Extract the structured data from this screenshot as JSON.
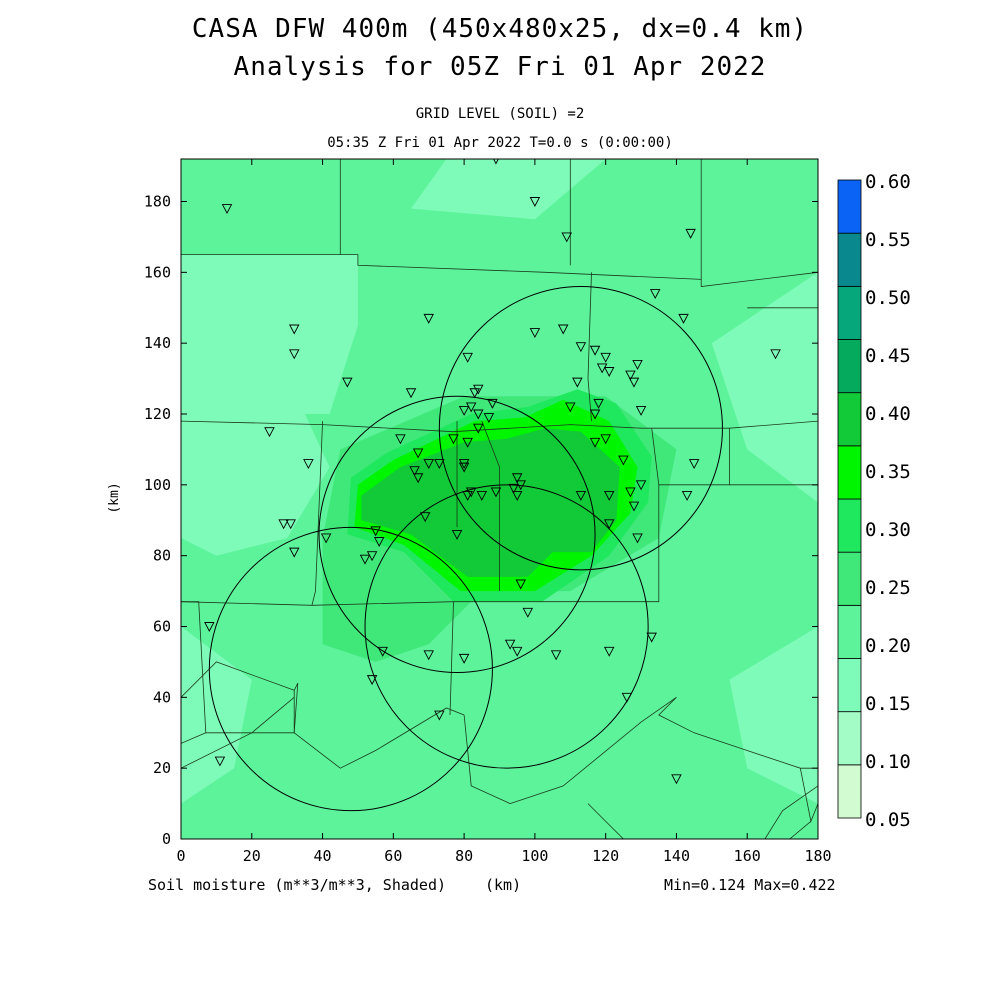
{
  "header": {
    "title_line1": "CASA DFW 400m (450x480x25, dx=0.4 km)",
    "title_line2": "Analysis for 05Z Fri 01 Apr 2022",
    "grid_level": "GRID LEVEL (SOIL) =2",
    "valid_time": "05:35 Z Fri 01 Apr 2022    T=0.0 s (0:00:00)"
  },
  "footer": {
    "field_label": "Soil moisture (m**3/m**3, Shaded)",
    "x_unit": "(km)",
    "minmax": "Min=0.124 Max=0.422"
  },
  "chart_data": {
    "type": "heatmap",
    "title": "CASA DFW 400m (450x480x25, dx=0.4 km)",
    "subtitle": "Analysis for 05Z Fri 01 Apr 2022",
    "xlabel": "(km)",
    "ylabel": "(km)",
    "xlim": [
      0,
      180
    ],
    "ylim": [
      0,
      192
    ],
    "x_ticks": [
      0,
      20,
      40,
      60,
      80,
      100,
      120,
      140,
      160,
      180
    ],
    "y_ticks": [
      0,
      20,
      40,
      60,
      80,
      100,
      120,
      140,
      160,
      180
    ],
    "grid": false,
    "colorbar": {
      "levels": [
        0.05,
        0.1,
        0.15,
        0.2,
        0.25,
        0.3,
        0.35,
        0.4,
        0.45,
        0.5,
        0.55,
        0.6
      ],
      "labels": [
        "0.05",
        "0.10",
        "0.15",
        "0.20",
        "0.25",
        "0.30",
        "0.35",
        "0.40",
        "0.45",
        "0.50",
        "0.55",
        "0.60"
      ],
      "colors": [
        "#d2fbd2",
        "#a3fbc6",
        "#7ffbb9",
        "#5cf39b",
        "#40e87a",
        "#20e85e",
        "#00f500",
        "#12c937",
        "#06aa5d",
        "#07a77c",
        "#09898d",
        "#0a63f5"
      ]
    },
    "background_level": 0.22,
    "regions": [
      {
        "level": 0.17,
        "polygon": [
          [
            0,
            120
          ],
          [
            0,
            165
          ],
          [
            50,
            165
          ],
          [
            50,
            145
          ],
          [
            42,
            120
          ]
        ]
      },
      {
        "level": 0.17,
        "polygon": [
          [
            0,
            120
          ],
          [
            35,
            120
          ],
          [
            42,
            105
          ],
          [
            30,
            85
          ],
          [
            10,
            80
          ],
          [
            0,
            85
          ]
        ]
      },
      {
        "level": 0.17,
        "polygon": [
          [
            100,
            175
          ],
          [
            120,
            192
          ],
          [
            75,
            192
          ],
          [
            65,
            178
          ]
        ]
      },
      {
        "level": 0.17,
        "polygon": [
          [
            180,
            160
          ],
          [
            180,
            95
          ],
          [
            160,
            110
          ],
          [
            150,
            140
          ]
        ]
      },
      {
        "level": 0.17,
        "polygon": [
          [
            180,
            60
          ],
          [
            180,
            10
          ],
          [
            160,
            20
          ],
          [
            155,
            45
          ]
        ]
      },
      {
        "level": 0.17,
        "polygon": [
          [
            0,
            10
          ],
          [
            0,
            60
          ],
          [
            20,
            45
          ],
          [
            15,
            20
          ]
        ]
      },
      {
        "level": 0.27,
        "polygon": [
          [
            40,
            55
          ],
          [
            55,
            50
          ],
          [
            70,
            55
          ],
          [
            85,
            70
          ],
          [
            110,
            70
          ],
          [
            135,
            85
          ],
          [
            140,
            110
          ],
          [
            120,
            125
          ],
          [
            80,
            125
          ],
          [
            45,
            110
          ],
          [
            40,
            85
          ]
        ]
      },
      {
        "level": 0.32,
        "polygon": [
          [
            47,
            86
          ],
          [
            63,
            81
          ],
          [
            77,
            67
          ],
          [
            102,
            67
          ],
          [
            121,
            80
          ],
          [
            132,
            95
          ],
          [
            133,
            108
          ],
          [
            123,
            123
          ],
          [
            112,
            127
          ],
          [
            98,
            122
          ],
          [
            82,
            120
          ],
          [
            58,
            109
          ],
          [
            48,
            102
          ]
        ]
      },
      {
        "level": 0.37,
        "polygon": [
          [
            49,
            88
          ],
          [
            63,
            83
          ],
          [
            79,
            70
          ],
          [
            100,
            70
          ],
          [
            116,
            80
          ],
          [
            127,
            92
          ],
          [
            129,
            105
          ],
          [
            121,
            118
          ],
          [
            108,
            124
          ],
          [
            97,
            119
          ],
          [
            83,
            118
          ],
          [
            60,
            107
          ],
          [
            50,
            100
          ]
        ]
      },
      {
        "level": 0.42,
        "polygon": [
          [
            51,
            90
          ],
          [
            65,
            86
          ],
          [
            81,
            74
          ],
          [
            98,
            74
          ],
          [
            105,
            81
          ],
          [
            116,
            81
          ],
          [
            123,
            90
          ],
          [
            124,
            105
          ],
          [
            113,
            115
          ],
          [
            103,
            116
          ],
          [
            92,
            113
          ],
          [
            80,
            112
          ],
          [
            62,
            105
          ],
          [
            51,
            97
          ]
        ]
      }
    ],
    "radar_circles": [
      {
        "center_x": 113,
        "center_y": 116,
        "radius": 40
      },
      {
        "center_x": 78,
        "center_y": 86,
        "radius": 39
      },
      {
        "center_x": 92,
        "center_y": 60,
        "radius": 40
      },
      {
        "center_x": 48,
        "center_y": 48,
        "radius": 40
      }
    ],
    "county_lines": [
      [
        [
          0,
          165
        ],
        [
          50,
          165
        ],
        [
          50,
          162
        ],
        [
          103,
          160
        ],
        [
          147,
          158
        ],
        [
          147,
          156
        ],
        [
          180,
          160
        ]
      ],
      [
        [
          0,
          118
        ],
        [
          40,
          117
        ],
        [
          77,
          115
        ],
        [
          110,
          117
        ],
        [
          130,
          116
        ],
        [
          155,
          116
        ],
        [
          180,
          118
        ]
      ],
      [
        [
          40,
          118
        ],
        [
          38,
          70
        ],
        [
          37,
          66
        ],
        [
          0,
          67
        ]
      ],
      [
        [
          78,
          118
        ],
        [
          78,
          88
        ]
      ],
      [
        [
          85,
          118
        ],
        [
          90,
          105
        ],
        [
          90,
          70
        ]
      ],
      [
        [
          116,
          160
        ],
        [
          115,
          130
        ],
        [
          116,
          118
        ]
      ],
      [
        [
          133,
          116
        ],
        [
          135,
          100
        ],
        [
          135,
          67
        ],
        [
          100,
          67
        ],
        [
          77,
          67
        ],
        [
          37,
          66
        ]
      ],
      [
        [
          155,
          116
        ],
        [
          155,
          100
        ],
        [
          180,
          100
        ]
      ],
      [
        [
          135,
          100
        ],
        [
          155,
          100
        ]
      ],
      [
        [
          160,
          150
        ],
        [
          180,
          150
        ]
      ],
      [
        [
          147,
          192
        ],
        [
          147,
          158
        ]
      ],
      [
        [
          110,
          192
        ],
        [
          110,
          162
        ]
      ],
      [
        [
          45,
          192
        ],
        [
          45,
          165
        ]
      ],
      [
        [
          0,
          67
        ],
        [
          5,
          67
        ],
        [
          7,
          30
        ],
        [
          32,
          30
        ],
        [
          32,
          42
        ],
        [
          33,
          44
        ]
      ],
      [
        [
          7,
          30
        ],
        [
          0,
          27
        ]
      ],
      [
        [
          33,
          44
        ],
        [
          32,
          30
        ],
        [
          45,
          20
        ],
        [
          55,
          25
        ],
        [
          75,
          37
        ],
        [
          80,
          35
        ]
      ],
      [
        [
          80,
          35
        ],
        [
          82,
          15
        ],
        [
          93,
          10
        ]
      ],
      [
        [
          93,
          10
        ],
        [
          108,
          15
        ],
        [
          130,
          33
        ],
        [
          140,
          40
        ]
      ],
      [
        [
          140,
          40
        ],
        [
          135,
          35
        ],
        [
          145,
          30
        ],
        [
          160,
          25
        ],
        [
          175,
          20
        ],
        [
          178,
          5
        ],
        [
          180,
          10
        ]
      ],
      [
        [
          175,
          20
        ],
        [
          180,
          20
        ]
      ],
      [
        [
          0,
          20
        ],
        [
          20,
          30
        ],
        [
          32,
          40
        ]
      ],
      [
        [
          0,
          40
        ],
        [
          10,
          50
        ],
        [
          32,
          42
        ]
      ],
      [
        [
          77,
          67
        ],
        [
          76,
          35
        ]
      ],
      [
        [
          115,
          10
        ],
        [
          125,
          0
        ]
      ],
      [
        [
          165,
          0
        ],
        [
          170,
          8
        ],
        [
          180,
          15
        ]
      ],
      [
        [
          172,
          0
        ],
        [
          178,
          5
        ]
      ]
    ],
    "stations": [
      [
        13,
        178
      ],
      [
        89,
        192
      ],
      [
        100,
        180
      ],
      [
        109,
        170
      ],
      [
        144,
        171
      ],
      [
        32,
        144
      ],
      [
        32,
        137
      ],
      [
        47,
        129
      ],
      [
        70,
        147
      ],
      [
        65,
        126
      ],
      [
        81,
        136
      ],
      [
        100,
        143
      ],
      [
        108,
        144
      ],
      [
        113,
        139
      ],
      [
        117,
        138
      ],
      [
        120,
        136
      ],
      [
        119,
        133
      ],
      [
        121,
        132
      ],
      [
        127,
        131
      ],
      [
        129,
        134
      ],
      [
        128,
        129
      ],
      [
        112,
        129
      ],
      [
        134,
        154
      ],
      [
        142,
        147
      ],
      [
        168,
        137
      ],
      [
        84,
        127
      ],
      [
        83,
        126
      ],
      [
        88,
        123
      ],
      [
        84,
        120
      ],
      [
        82,
        122
      ],
      [
        80,
        121
      ],
      [
        87,
        119
      ],
      [
        84,
        116
      ],
      [
        77,
        113
      ],
      [
        81,
        112
      ],
      [
        110,
        122
      ],
      [
        118,
        123
      ],
      [
        117,
        120
      ],
      [
        130,
        121
      ],
      [
        120,
        113
      ],
      [
        117,
        112
      ],
      [
        25,
        115
      ],
      [
        36,
        106
      ],
      [
        62,
        113
      ],
      [
        67,
        109
      ],
      [
        66,
        104
      ],
      [
        70,
        106
      ],
      [
        73,
        106
      ],
      [
        67,
        102
      ],
      [
        80,
        106
      ],
      [
        80,
        105
      ],
      [
        95,
        102
      ],
      [
        96,
        100
      ],
      [
        94,
        99
      ],
      [
        89,
        98
      ],
      [
        82,
        98
      ],
      [
        81,
        97
      ],
      [
        85,
        97
      ],
      [
        95,
        97
      ],
      [
        113,
        97
      ],
      [
        121,
        97
      ],
      [
        127,
        98
      ],
      [
        130,
        100
      ],
      [
        143,
        97
      ],
      [
        145,
        106
      ],
      [
        125,
        107
      ],
      [
        128,
        94
      ],
      [
        121,
        89
      ],
      [
        129,
        85
      ],
      [
        29,
        89
      ],
      [
        31,
        89
      ],
      [
        32,
        81
      ],
      [
        41,
        85
      ],
      [
        55,
        87
      ],
      [
        56,
        84
      ],
      [
        52,
        79
      ],
      [
        54,
        80
      ],
      [
        69,
        91
      ],
      [
        78,
        86
      ],
      [
        98,
        64
      ],
      [
        96,
        72
      ],
      [
        8,
        60
      ],
      [
        57,
        53
      ],
      [
        70,
        52
      ],
      [
        80,
        51
      ],
      [
        93,
        55
      ],
      [
        95,
        53
      ],
      [
        106,
        52
      ],
      [
        121,
        53
      ],
      [
        133,
        57
      ],
      [
        126,
        40
      ],
      [
        54,
        45
      ],
      [
        73,
        35
      ],
      [
        11,
        22
      ],
      [
        140,
        17
      ]
    ]
  }
}
